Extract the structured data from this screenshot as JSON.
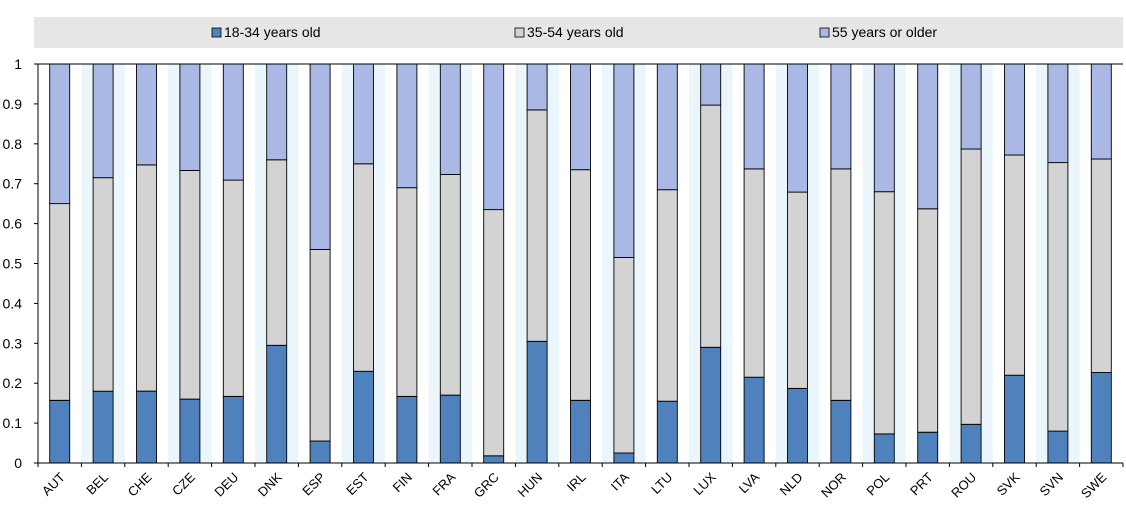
{
  "chart_data": {
    "type": "bar",
    "stacked": true,
    "categories": [
      "AUT",
      "BEL",
      "CHE",
      "CZE",
      "DEU",
      "DNK",
      "ESP",
      "EST",
      "FIN",
      "FRA",
      "GRC",
      "HUN",
      "IRL",
      "ITA",
      "LTU",
      "LUX",
      "LVA",
      "NLD",
      "NOR",
      "POL",
      "PRT",
      "ROU",
      "SVK",
      "SVN",
      "SWE"
    ],
    "series": [
      {
        "name": "18-34 years old",
        "color": "#4f81bd",
        "values": [
          0.157,
          0.18,
          0.18,
          0.16,
          0.167,
          0.295,
          0.055,
          0.23,
          0.167,
          0.17,
          0.018,
          0.305,
          0.157,
          0.025,
          0.155,
          0.29,
          0.215,
          0.187,
          0.157,
          0.073,
          0.077,
          0.097,
          0.22,
          0.08,
          0.227
        ]
      },
      {
        "name": "35-54 years old",
        "color": "#d3d3d3",
        "values": [
          0.493,
          0.535,
          0.567,
          0.573,
          0.542,
          0.465,
          0.48,
          0.52,
          0.523,
          0.553,
          0.617,
          0.58,
          0.578,
          0.49,
          0.53,
          0.607,
          0.522,
          0.492,
          0.58,
          0.607,
          0.56,
          0.69,
          0.552,
          0.673,
          0.535
        ]
      },
      {
        "name": "55 years  or older",
        "color": "#a9b8e5",
        "values": [
          0.35,
          0.285,
          0.253,
          0.267,
          0.291,
          0.24,
          0.465,
          0.25,
          0.31,
          0.277,
          0.365,
          0.115,
          0.265,
          0.485,
          0.315,
          0.103,
          0.263,
          0.321,
          0.263,
          0.32,
          0.363,
          0.213,
          0.228,
          0.247,
          0.238
        ]
      }
    ],
    "ylim": [
      0,
      1
    ],
    "yticks": [
      "0",
      "0.1",
      "0.2",
      "0.3",
      "0.4",
      "0.5",
      "0.6",
      "0.7",
      "0.8",
      "0.9",
      "1"
    ],
    "ytick_values": [
      0,
      0.1,
      0.2,
      0.3,
      0.4,
      0.5,
      0.6,
      0.7,
      0.8,
      0.9,
      1
    ],
    "legend_position": "top",
    "grid": false,
    "title": "",
    "xlabel": "",
    "ylabel": ""
  },
  "colors": {
    "legend_band": "#e6e6e6",
    "column_band": "#eaf6fb",
    "axis": "#000000"
  }
}
